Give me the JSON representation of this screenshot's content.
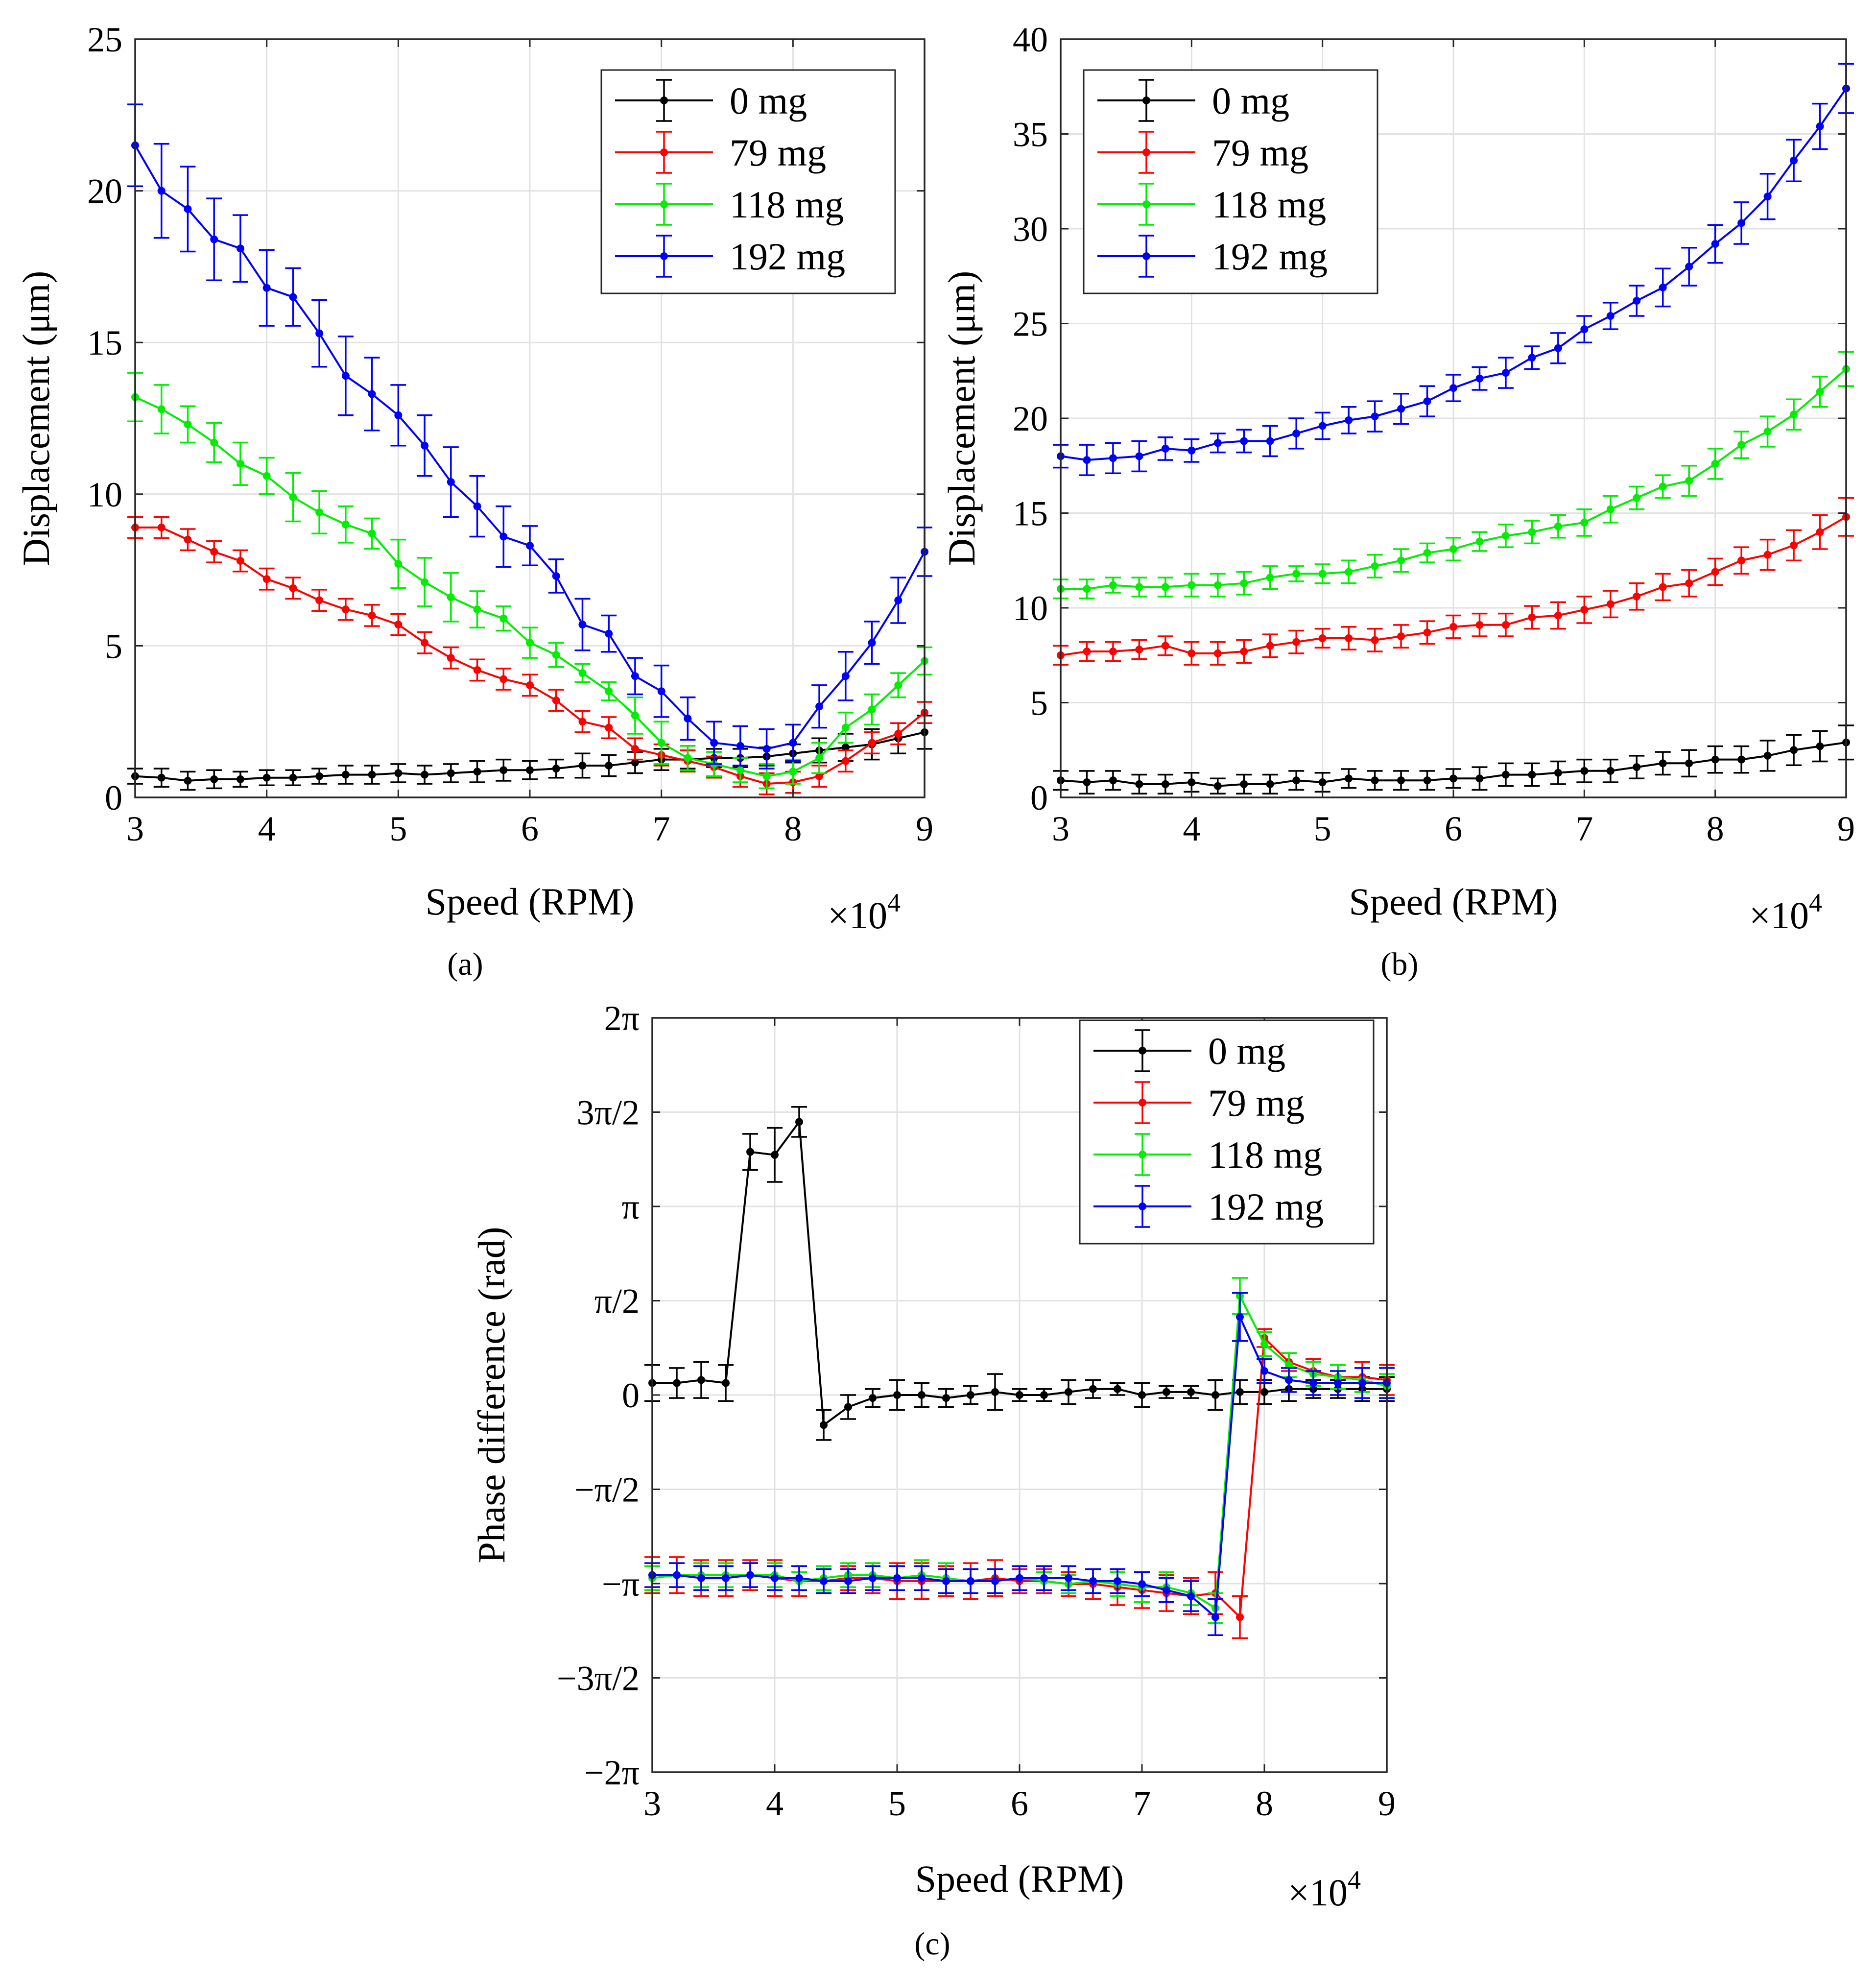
{
  "chart_data": [
    {
      "type": "line",
      "panel": "a",
      "panel_label": "(a)",
      "xlabel": "Speed (RPM)",
      "ylabel": "Displacement (μm)",
      "x_multiplier": "×10",
      "x_multiplier_exp": "4",
      "xlim": [
        3,
        9
      ],
      "ylim": [
        0,
        25
      ],
      "xticks": [
        3,
        4,
        5,
        6,
        7,
        8,
        9
      ],
      "xtick_labels": [
        "3",
        "4",
        "5",
        "6",
        "7",
        "8",
        "9"
      ],
      "yticks": [
        0,
        5,
        10,
        15,
        20,
        25
      ],
      "ytick_labels": [
        "0",
        "5",
        "10",
        "15",
        "20",
        "25"
      ],
      "grid": true,
      "legend_position": "top-right",
      "x": [
        3.0,
        3.2,
        3.4,
        3.6,
        3.8,
        4.0,
        4.2,
        4.4,
        4.6,
        4.8,
        5.0,
        5.2,
        5.4,
        5.6,
        5.8,
        6.0,
        6.2,
        6.4,
        6.6,
        6.8,
        7.0,
        7.2,
        7.4,
        7.6,
        7.8,
        8.0,
        8.2,
        8.4,
        8.6,
        8.8,
        9.0
      ],
      "series": [
        {
          "name": "0 mg",
          "color": "#000000",
          "values": [
            0.7,
            0.65,
            0.55,
            0.6,
            0.6,
            0.65,
            0.65,
            0.7,
            0.75,
            0.75,
            0.8,
            0.75,
            0.8,
            0.85,
            0.9,
            0.9,
            0.95,
            1.05,
            1.05,
            1.15,
            1.25,
            1.25,
            1.3,
            1.3,
            1.35,
            1.45,
            1.55,
            1.65,
            1.75,
            1.95,
            2.15
          ],
          "errors": [
            0.25,
            0.3,
            0.3,
            0.3,
            0.25,
            0.25,
            0.25,
            0.25,
            0.3,
            0.3,
            0.3,
            0.3,
            0.3,
            0.35,
            0.35,
            0.3,
            0.3,
            0.4,
            0.35,
            0.35,
            0.35,
            0.3,
            0.3,
            0.3,
            0.3,
            0.3,
            0.4,
            0.45,
            0.5,
            0.5,
            0.55
          ]
        },
        {
          "name": "79 mg",
          "color": "#ff0000",
          "values": [
            8.9,
            8.9,
            8.5,
            8.1,
            7.8,
            7.2,
            6.9,
            6.5,
            6.2,
            6.0,
            5.7,
            5.1,
            4.6,
            4.2,
            3.9,
            3.7,
            3.2,
            2.5,
            2.3,
            1.6,
            1.4,
            1.2,
            1.0,
            0.7,
            0.45,
            0.5,
            0.7,
            1.2,
            1.8,
            2.1,
            2.8
          ]
        },
        {
          "name": "118 mg",
          "color": "#00ee00",
          "values": [
            13.2,
            12.8,
            12.3,
            11.7,
            11.0,
            10.6,
            9.9,
            9.4,
            9.0,
            8.7,
            7.7,
            7.1,
            6.6,
            6.2,
            5.9,
            5.1,
            4.7,
            4.1,
            3.5,
            2.7,
            1.8,
            1.3,
            1.1,
            0.9,
            0.7,
            0.85,
            1.3,
            2.3,
            2.9,
            3.7,
            4.5
          ],
          "errors": [
            0.8,
            0.8,
            0.6,
            0.65,
            0.7,
            0.6,
            0.8,
            0.7,
            0.6,
            0.5,
            0.8,
            0.8,
            0.8,
            0.6,
            0.4,
            0.5,
            0.4,
            0.3,
            0.3,
            0.6,
            0.7,
            0.4,
            0.4,
            0.4,
            0.4,
            0.4,
            0.5,
            0.5,
            0.5,
            0.4,
            0.45
          ]
        },
        {
          "name": "192 mg",
          "color": "#0000ff",
          "values": [
            21.5,
            20.0,
            19.4,
            18.4,
            18.1,
            16.8,
            16.5,
            15.3,
            13.9,
            13.3,
            12.6,
            11.6,
            10.4,
            9.6,
            8.6,
            8.3,
            7.3,
            5.7,
            5.4,
            4.0,
            3.5,
            2.6,
            1.8,
            1.7,
            1.6,
            1.8,
            3.0,
            4.0,
            5.1,
            6.5,
            8.1
          ],
          "errors": [
            1.35,
            1.55,
            1.4,
            1.35,
            1.1,
            1.25,
            0.95,
            1.1,
            1.3,
            1.2,
            1.0,
            1.0,
            1.15,
            1.0,
            1.0,
            0.65,
            0.55,
            0.85,
            0.6,
            0.6,
            0.85,
            0.7,
            0.7,
            0.65,
            0.65,
            0.6,
            0.7,
            0.8,
            0.7,
            0.75,
            0.8
          ]
        }
      ]
    },
    {
      "type": "line",
      "panel": "b",
      "panel_label": "(b)",
      "xlabel": "Speed (RPM)",
      "ylabel": "Displacement (μm)",
      "x_multiplier": "×10",
      "x_multiplier_exp": "4",
      "xlim": [
        3,
        9
      ],
      "ylim": [
        0,
        40
      ],
      "xticks": [
        3,
        4,
        5,
        6,
        7,
        8,
        9
      ],
      "xtick_labels": [
        "3",
        "4",
        "5",
        "6",
        "7",
        "8",
        "9"
      ],
      "yticks": [
        0,
        5,
        10,
        15,
        20,
        25,
        30,
        35,
        40
      ],
      "ytick_labels": [
        "0",
        "5",
        "10",
        "15",
        "20",
        "25",
        "30",
        "35",
        "40"
      ],
      "grid": true,
      "legend_position": "top-left",
      "x": [
        3.0,
        3.2,
        3.4,
        3.6,
        3.8,
        4.0,
        4.2,
        4.4,
        4.6,
        4.8,
        5.0,
        5.2,
        5.4,
        5.6,
        5.8,
        6.0,
        6.2,
        6.4,
        6.6,
        6.8,
        7.0,
        7.2,
        7.4,
        7.6,
        7.8,
        8.0,
        8.2,
        8.4,
        8.6,
        8.8,
        9.0
      ],
      "series": [
        {
          "name": "0 mg",
          "color": "#000000",
          "values": [
            0.9,
            0.8,
            0.9,
            0.7,
            0.7,
            0.8,
            0.6,
            0.7,
            0.7,
            0.9,
            0.8,
            1.0,
            0.9,
            0.9,
            0.9,
            1.0,
            1.0,
            1.2,
            1.2,
            1.3,
            1.4,
            1.4,
            1.6,
            1.8,
            1.8,
            2.0,
            2.0,
            2.2,
            2.5,
            2.7,
            2.9
          ],
          "errors": [
            0.5,
            0.6,
            0.5,
            0.5,
            0.5,
            0.5,
            0.4,
            0.5,
            0.5,
            0.5,
            0.5,
            0.5,
            0.5,
            0.5,
            0.5,
            0.5,
            0.6,
            0.6,
            0.6,
            0.6,
            0.6,
            0.6,
            0.6,
            0.6,
            0.7,
            0.7,
            0.7,
            0.8,
            0.8,
            0.8,
            0.9
          ]
        },
        {
          "name": "79 mg",
          "color": "#ff0000",
          "values": [
            7.5,
            7.7,
            7.7,
            7.8,
            8.0,
            7.6,
            7.6,
            7.7,
            8.0,
            8.2,
            8.4,
            8.4,
            8.3,
            8.5,
            8.7,
            9.0,
            9.1,
            9.1,
            9.5,
            9.6,
            9.9,
            10.2,
            10.6,
            11.1,
            11.3,
            11.9,
            12.5,
            12.8,
            13.3,
            14.0,
            14.8
          ],
          "errors": [
            0.5,
            0.5,
            0.5,
            0.5,
            0.5,
            0.6,
            0.6,
            0.6,
            0.6,
            0.6,
            0.5,
            0.6,
            0.6,
            0.6,
            0.6,
            0.6,
            0.6,
            0.6,
            0.6,
            0.7,
            0.7,
            0.7,
            0.7,
            0.7,
            0.7,
            0.7,
            0.7,
            0.8,
            0.8,
            0.9,
            1.0
          ]
        },
        {
          "name": "118 mg",
          "color": "#00ee00",
          "values": [
            11.0,
            11.0,
            11.2,
            11.1,
            11.1,
            11.2,
            11.2,
            11.3,
            11.6,
            11.8,
            11.8,
            11.9,
            12.2,
            12.5,
            12.9,
            13.1,
            13.5,
            13.8,
            14.0,
            14.3,
            14.5,
            15.2,
            15.8,
            16.4,
            16.7,
            17.6,
            18.6,
            19.3,
            20.2,
            21.4,
            22.6
          ],
          "errors": [
            0.5,
            0.5,
            0.4,
            0.5,
            0.5,
            0.6,
            0.6,
            0.6,
            0.6,
            0.4,
            0.5,
            0.6,
            0.6,
            0.6,
            0.5,
            0.6,
            0.5,
            0.6,
            0.6,
            0.6,
            0.7,
            0.7,
            0.6,
            0.6,
            0.8,
            0.8,
            0.7,
            0.8,
            0.8,
            0.8,
            0.9
          ]
        },
        {
          "name": "192 mg",
          "color": "#0000ff",
          "values": [
            18.0,
            17.8,
            17.9,
            18.0,
            18.4,
            18.3,
            18.7,
            18.8,
            18.8,
            19.2,
            19.6,
            19.9,
            20.1,
            20.5,
            20.9,
            21.6,
            22.1,
            22.4,
            23.2,
            23.7,
            24.7,
            25.4,
            26.2,
            26.9,
            28.0,
            29.2,
            30.3,
            31.7,
            33.6,
            35.4,
            37.4
          ],
          "errors": [
            0.6,
            0.8,
            0.8,
            0.8,
            0.6,
            0.6,
            0.5,
            0.6,
            0.8,
            0.8,
            0.7,
            0.7,
            0.8,
            0.8,
            0.8,
            0.7,
            0.6,
            0.8,
            0.6,
            0.8,
            0.7,
            0.7,
            0.8,
            1.0,
            1.0,
            1.0,
            1.1,
            1.2,
            1.1,
            1.2,
            1.3
          ]
        }
      ]
    },
    {
      "type": "line",
      "panel": "c",
      "panel_label": "(c)",
      "xlabel": "Speed (RPM)",
      "ylabel": "Phase difference (rad)",
      "x_multiplier": "×10",
      "x_multiplier_exp": "4",
      "xlim": [
        3,
        9
      ],
      "ylim": [
        -6.2832,
        6.2832
      ],
      "xticks": [
        3,
        4,
        5,
        6,
        7,
        8,
        9
      ],
      "xtick_labels": [
        "3",
        "4",
        "5",
        "6",
        "7",
        "8",
        "9"
      ],
      "yticks": [
        -6.2832,
        -4.7124,
        -3.1416,
        -1.5708,
        0,
        1.5708,
        3.1416,
        4.7124,
        6.2832
      ],
      "ytick_labels": [
        "−2π",
        "−3π/2",
        "−π",
        "−π/2",
        "0",
        "π/2",
        "π",
        "3π/2",
        "2π"
      ],
      "grid": true,
      "legend_position": "top-right",
      "x": [
        3.0,
        3.2,
        3.4,
        3.6,
        3.8,
        4.0,
        4.2,
        4.4,
        4.6,
        4.8,
        5.0,
        5.2,
        5.4,
        5.6,
        5.8,
        6.0,
        6.2,
        6.4,
        6.6,
        6.8,
        7.0,
        7.2,
        7.4,
        7.6,
        7.8,
        8.0,
        8.2,
        8.4,
        8.6,
        8.8,
        9.0
      ],
      "series": [
        {
          "name": "0 mg",
          "color": "#000000",
          "values": [
            0.2,
            0.2,
            0.25,
            0.2,
            4.05,
            4.0,
            4.55,
            -0.5,
            -0.2,
            -0.05,
            0.0,
            0.0,
            -0.05,
            0.0,
            0.05,
            0.0,
            0.0,
            0.05,
            0.1,
            0.1,
            0.0,
            0.05,
            0.05,
            0.0,
            0.05,
            0.05,
            0.1,
            0.1,
            0.1,
            0.1,
            0.1
          ],
          "errors": [
            0.3,
            0.25,
            0.3,
            0.3,
            0.3,
            0.45,
            0.25,
            0.25,
            0.2,
            0.15,
            0.25,
            0.2,
            0.15,
            0.15,
            0.3,
            0.1,
            0.1,
            0.2,
            0.15,
            0.1,
            0.2,
            0.1,
            0.1,
            0.25,
            0.2,
            0.2,
            0.2,
            0.15,
            0.15,
            0.2,
            0.2
          ]
        },
        {
          "name": "79 mg",
          "color": "#ff0000",
          "values": [
            -3.0,
            -3.0,
            -3.05,
            -3.05,
            -3.0,
            -3.05,
            -3.1,
            -3.1,
            -3.05,
            -3.05,
            -3.1,
            -3.1,
            -3.1,
            -3.1,
            -3.05,
            -3.1,
            -3.1,
            -3.15,
            -3.15,
            -3.2,
            -3.25,
            -3.3,
            -3.35,
            -3.3,
            -3.7,
            0.95,
            0.55,
            0.4,
            0.3,
            0.3,
            0.25
          ],
          "errors": [
            0.3,
            0.3,
            0.3,
            0.3,
            0.25,
            0.3,
            0.25,
            0.2,
            0.2,
            0.25,
            0.3,
            0.3,
            0.25,
            0.3,
            0.3,
            0.2,
            0.2,
            0.2,
            0.25,
            0.3,
            0.3,
            0.3,
            0.3,
            0.35,
            0.35,
            0.15,
            0.15,
            0.2,
            0.2,
            0.25,
            0.25
          ]
        },
        {
          "name": "118 mg",
          "color": "#00ee00",
          "values": [
            -3.05,
            -3.0,
            -3.0,
            -3.0,
            -3.0,
            -3.0,
            -3.1,
            -3.05,
            -3.0,
            -3.0,
            -3.05,
            -3.0,
            -3.05,
            -3.1,
            -3.1,
            -3.05,
            -3.1,
            -3.15,
            -3.1,
            -3.15,
            -3.2,
            -3.2,
            -3.3,
            -3.55,
            1.65,
            0.85,
            0.5,
            0.35,
            0.3,
            0.25,
            0.15
          ],
          "errors": [
            0.2,
            0.2,
            0.2,
            0.2,
            0.2,
            0.2,
            0.15,
            0.2,
            0.2,
            0.2,
            0.2,
            0.25,
            0.25,
            0.2,
            0.2,
            0.2,
            0.15,
            0.15,
            0.2,
            0.2,
            0.25,
            0.25,
            0.2,
            0.25,
            0.3,
            0.2,
            0.2,
            0.2,
            0.2,
            0.2,
            0.2
          ]
        },
        {
          "name": "192 mg",
          "color": "#0000ff",
          "values": [
            -3.0,
            -3.0,
            -3.05,
            -3.05,
            -3.0,
            -3.05,
            -3.05,
            -3.1,
            -3.1,
            -3.05,
            -3.05,
            -3.05,
            -3.1,
            -3.1,
            -3.1,
            -3.05,
            -3.05,
            -3.05,
            -3.1,
            -3.1,
            -3.15,
            -3.25,
            -3.35,
            -3.7,
            1.3,
            0.4,
            0.25,
            0.2,
            0.2,
            0.2,
            0.2
          ],
          "errors": [
            0.2,
            0.2,
            0.2,
            0.2,
            0.2,
            0.2,
            0.2,
            0.2,
            0.2,
            0.2,
            0.2,
            0.2,
            0.2,
            0.2,
            0.2,
            0.2,
            0.2,
            0.2,
            0.2,
            0.2,
            0.2,
            0.2,
            0.25,
            0.3,
            0.4,
            0.2,
            0.2,
            0.2,
            0.2,
            0.25,
            0.25
          ]
        }
      ]
    }
  ]
}
